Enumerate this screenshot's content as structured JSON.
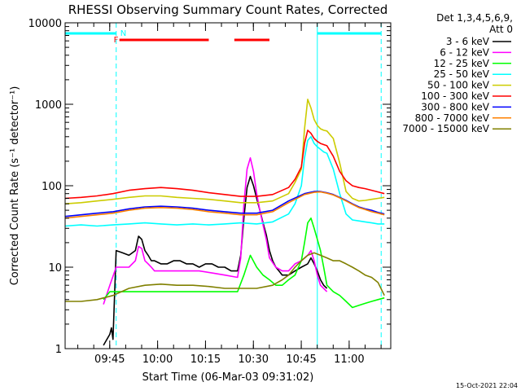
{
  "chart_data": {
    "type": "line",
    "title": "RHESSI Observing Summary Count Rates, Corrected",
    "xlabel": "Start Time (06-Mar-03 09:31:02)",
    "ylabel": "Corrected Count Rate (s⁻¹ detector⁻¹)",
    "yscale": "log",
    "ylim": [
      1,
      10000
    ],
    "xlim_minutes_after_start": [
      0,
      102
    ],
    "x_ticks": [
      {
        "label": "09:45",
        "minutes": 13.97
      },
      {
        "label": "10:00",
        "minutes": 28.97
      },
      {
        "label": "10:15",
        "minutes": 43.97
      },
      {
        "label": "10:30",
        "minutes": 58.97
      },
      {
        "label": "10:45",
        "minutes": 73.97
      },
      {
        "label": "11:00",
        "minutes": 88.97
      }
    ],
    "y_ticks": [
      {
        "label": "1",
        "value": 1
      },
      {
        "label": "10",
        "value": 10
      },
      {
        "label": "100",
        "value": 100
      },
      {
        "label": "1000",
        "value": 1000
      },
      {
        "label": "10000",
        "value": 10000
      }
    ],
    "legend": {
      "placement": "right",
      "header": [
        "Det 1,3,4,5,6,9,",
        "Att 0"
      ],
      "entries": [
        {
          "label": "3 - 6 keV",
          "color": "#000000"
        },
        {
          "label": "6 - 12 keV",
          "color": "#ff00ff"
        },
        {
          "label": "12 - 25 keV",
          "color": "#00ff00"
        },
        {
          "label": "25 - 50 keV",
          "color": "#00ffff"
        },
        {
          "label": "50 - 100 keV",
          "color": "#cccc00"
        },
        {
          "label": "100 - 300 keV",
          "color": "#ff0000"
        },
        {
          "label": "300 - 800 keV",
          "color": "#0000ff"
        },
        {
          "label": "800 - 7000 keV",
          "color": "#ff8000"
        },
        {
          "label": "7000 - 15000 keV",
          "color": "#808000"
        }
      ]
    },
    "annotations": [
      {
        "text": "F",
        "color": "#ff0000"
      },
      {
        "text": "N",
        "color": "#00ffff"
      }
    ],
    "night_intervals_minutes": [
      [
        -2,
        16
      ],
      [
        79,
        99
      ]
    ],
    "saa_markers_minutes": [
      0,
      16,
      79,
      99
    ],
    "flare_intervals_minutes": [
      [
        17,
        45
      ],
      [
        53,
        64
      ]
    ],
    "series": [
      {
        "name": "3 - 6 keV",
        "color": "#000000",
        "x": [
          12,
          14,
          14.5,
          15,
          16,
          18,
          20,
          22,
          23,
          24,
          25,
          26,
          27,
          28,
          30,
          32,
          34,
          36,
          38,
          40,
          42,
          44,
          46,
          48,
          50,
          52,
          54,
          55,
          56,
          57,
          58,
          59,
          60,
          61,
          62,
          63,
          64,
          65,
          66,
          67,
          68,
          70,
          72,
          74,
          76,
          77,
          78,
          79,
          80,
          81,
          82
        ],
        "y": [
          1.1,
          1.5,
          1.8,
          1.3,
          16,
          15,
          14,
          16,
          24,
          22,
          16,
          14,
          12,
          12,
          11,
          11,
          12,
          12,
          11,
          11,
          10,
          11,
          11,
          10,
          10,
          9,
          9,
          14,
          40,
          95,
          130,
          100,
          70,
          50,
          35,
          25,
          16,
          12,
          10,
          9,
          8,
          8,
          9,
          10,
          11,
          13,
          11,
          9,
          7,
          6,
          5.5
        ]
      },
      {
        "name": "6 - 12 keV",
        "color": "#ff00ff",
        "x": [
          12,
          14,
          16,
          18,
          20,
          22,
          23,
          24,
          25,
          26,
          27,
          28,
          30,
          34,
          38,
          42,
          46,
          50,
          54,
          55,
          56,
          57,
          58,
          59,
          60,
          61,
          62,
          63,
          64,
          66,
          68,
          70,
          72,
          74,
          76,
          77,
          78,
          79,
          80,
          82
        ],
        "y": [
          3.5,
          6,
          10,
          10,
          10,
          12,
          18,
          17,
          12,
          11,
          10,
          9,
          9,
          9,
          9,
          9,
          8.5,
          8,
          7.5,
          13,
          60,
          160,
          220,
          150,
          80,
          50,
          33,
          22,
          13,
          10,
          9,
          9,
          11,
          12,
          14,
          16,
          12,
          8,
          6,
          5
        ]
      },
      {
        "name": "12 - 25 keV",
        "color": "#00ff00",
        "x": [
          12,
          14,
          16,
          20,
          25,
          30,
          35,
          40,
          45,
          50,
          54,
          56,
          58,
          60,
          62,
          64,
          66,
          68,
          70,
          72,
          74,
          75,
          76,
          77,
          78,
          79,
          80,
          81,
          82,
          84,
          86,
          88,
          90,
          92,
          94,
          96,
          98,
          100
        ],
        "y": [
          4,
          5,
          5,
          5,
          5,
          5,
          5,
          5,
          5,
          5,
          5,
          8,
          14,
          10,
          8,
          7,
          6,
          6,
          7,
          8,
          12,
          20,
          35,
          40,
          30,
          22,
          16,
          10,
          6,
          5,
          4.5,
          3.8,
          3.2,
          3.4,
          3.6,
          3.8,
          4,
          4.2
        ]
      },
      {
        "name": "25 - 50 keV",
        "color": "#00ffff",
        "x": [
          0,
          5,
          10,
          15,
          20,
          25,
          30,
          35,
          40,
          45,
          50,
          55,
          60,
          65,
          70,
          72,
          74,
          75,
          76,
          77,
          78,
          79,
          80,
          81,
          82,
          84,
          86,
          88,
          90,
          92,
          94,
          96,
          98,
          100
        ],
        "y": [
          32,
          33,
          32,
          33,
          34,
          35,
          34,
          33,
          34,
          33,
          34,
          35,
          34,
          36,
          45,
          60,
          100,
          220,
          360,
          400,
          330,
          300,
          280,
          260,
          250,
          160,
          80,
          45,
          38,
          37,
          36,
          35,
          34,
          34
        ]
      },
      {
        "name": "50 - 100 keV",
        "color": "#cccc00",
        "x": [
          0,
          5,
          10,
          15,
          20,
          25,
          30,
          35,
          40,
          45,
          50,
          55,
          60,
          65,
          70,
          72,
          74,
          75,
          76,
          77,
          78,
          79,
          80,
          81,
          82,
          84,
          86,
          88,
          90,
          92,
          94,
          96,
          98,
          100
        ],
        "y": [
          60,
          62,
          65,
          68,
          72,
          75,
          75,
          72,
          70,
          68,
          65,
          62,
          62,
          65,
          80,
          110,
          160,
          500,
          1150,
          900,
          650,
          550,
          500,
          480,
          470,
          380,
          190,
          85,
          70,
          65,
          66,
          68,
          70,
          72
        ]
      },
      {
        "name": "100 - 300 keV",
        "color": "#ff0000",
        "x": [
          0,
          5,
          10,
          15,
          20,
          25,
          30,
          35,
          40,
          45,
          50,
          55,
          60,
          65,
          70,
          72,
          74,
          75,
          76,
          77,
          78,
          79,
          80,
          81,
          82,
          84,
          86,
          88,
          90,
          92,
          94,
          96,
          98,
          100
        ],
        "y": [
          70,
          72,
          75,
          80,
          88,
          92,
          95,
          92,
          88,
          82,
          78,
          74,
          74,
          78,
          95,
          120,
          170,
          330,
          480,
          440,
          380,
          350,
          330,
          320,
          310,
          230,
          150,
          115,
          100,
          95,
          92,
          88,
          84,
          80
        ]
      },
      {
        "name": "300 - 800 keV",
        "color": "#0000ff",
        "x": [
          0,
          5,
          10,
          15,
          20,
          25,
          30,
          35,
          40,
          45,
          50,
          55,
          60,
          65,
          70,
          75,
          78,
          80,
          82,
          84,
          86,
          88,
          90,
          92,
          94,
          96,
          98,
          100
        ],
        "y": [
          42,
          44,
          46,
          48,
          52,
          55,
          56,
          55,
          53,
          50,
          48,
          46,
          46,
          50,
          65,
          80,
          85,
          85,
          82,
          78,
          72,
          66,
          60,
          55,
          52,
          50,
          47,
          45
        ]
      },
      {
        "name": "800 - 7000 keV",
        "color": "#ff8000",
        "x": [
          0,
          5,
          10,
          15,
          20,
          25,
          30,
          35,
          40,
          45,
          50,
          55,
          60,
          65,
          70,
          75,
          78,
          80,
          82,
          84,
          86,
          88,
          90,
          92,
          94,
          96,
          98,
          100
        ],
        "y": [
          40,
          42,
          44,
          46,
          50,
          53,
          54,
          53,
          51,
          48,
          46,
          44,
          44,
          48,
          62,
          78,
          83,
          84,
          81,
          77,
          71,
          65,
          59,
          54,
          51,
          48,
          46,
          44
        ]
      },
      {
        "name": "7000 - 15000 keV",
        "color": "#808000",
        "x": [
          0,
          5,
          10,
          15,
          20,
          25,
          30,
          35,
          40,
          45,
          50,
          55,
          60,
          65,
          68,
          70,
          72,
          74,
          76,
          78,
          80,
          82,
          84,
          86,
          88,
          90,
          92,
          94,
          96,
          98,
          100
        ],
        "y": [
          3.8,
          3.8,
          4,
          4.5,
          5.5,
          6,
          6.2,
          6,
          6,
          5.8,
          5.5,
          5.5,
          5.5,
          6,
          7,
          8,
          10,
          12,
          14,
          15,
          14,
          13,
          12,
          12,
          11,
          10,
          9,
          8,
          7.5,
          6.5,
          4.5
        ]
      }
    ]
  },
  "footer": {
    "timestamp": "15-Oct-2021 22:04"
  }
}
